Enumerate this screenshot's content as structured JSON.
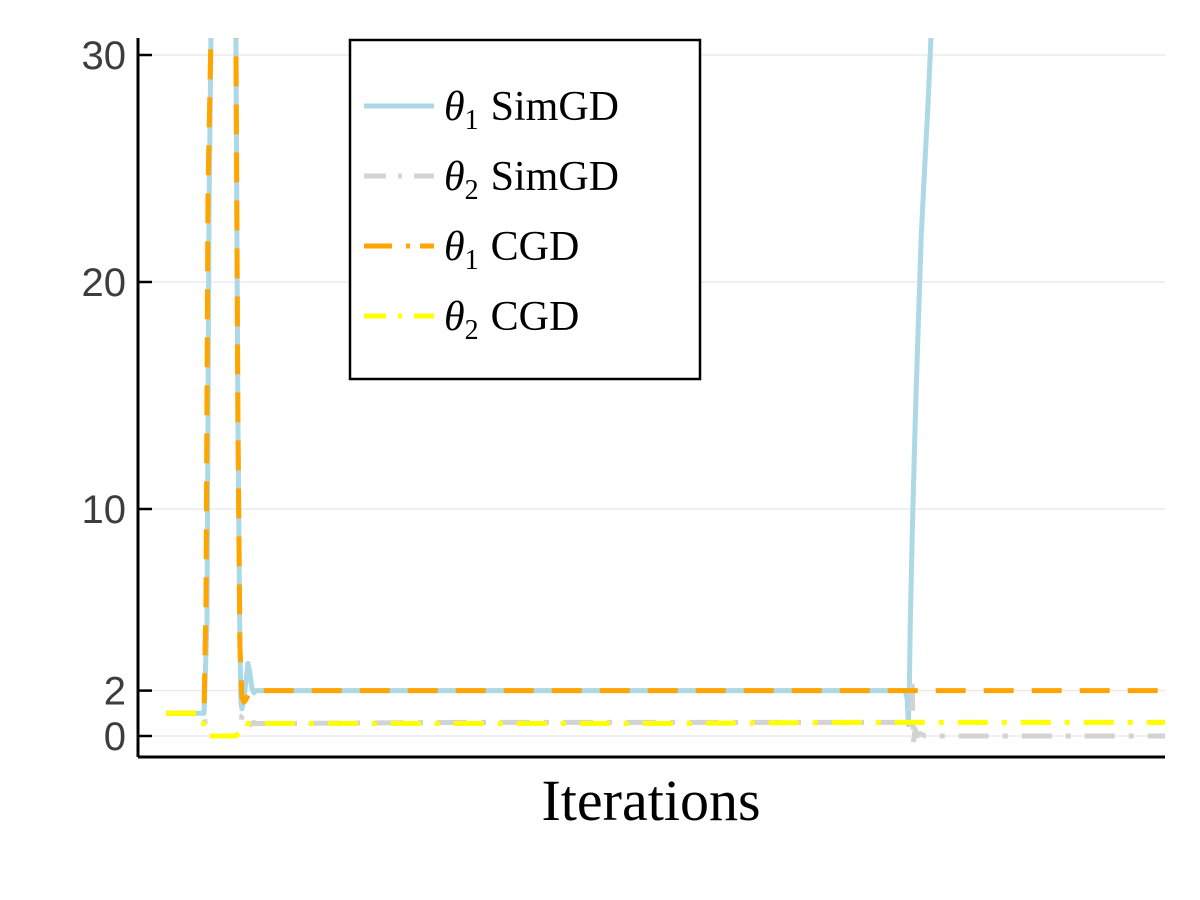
{
  "chart_data": {
    "type": "line",
    "xlabel": "Iterations",
    "ylabel": "",
    "title": "",
    "xlim": [
      0,
      1000
    ],
    "ylim": [
      -1,
      31
    ],
    "yticks": [
      0,
      2,
      10,
      20,
      30
    ],
    "grid": true,
    "legend_position": "top-center",
    "series": [
      {
        "name": "θ1 SimGD",
        "symbol": "θ",
        "subscript": "1",
        "method": "SimGD",
        "color": "#add8e6",
        "style": "solid",
        "x": [
          0,
          30,
          38,
          41,
          43,
          45,
          70,
          72,
          74,
          75,
          76,
          77,
          78,
          80,
          82,
          84,
          86,
          88,
          90,
          92,
          95,
          100,
          300,
          500,
          700,
          740,
          742,
          743,
          744,
          745,
          747,
          750,
          753,
          756,
          760,
          763,
          765,
          766
        ],
        "values": [
          1.0,
          1.0,
          1.0,
          5,
          23,
          31,
          31,
          14,
          4,
          1.5,
          1.2,
          1.4,
          1.6,
          2.4,
          3.2,
          2.8,
          2.1,
          1.9,
          2.0,
          2.0,
          2.0,
          2.0,
          2.0,
          2.0,
          2.0,
          2.0,
          1.6,
          0.5,
          2.0,
          5,
          9,
          14,
          18,
          22,
          25.5,
          28,
          30,
          31
        ]
      },
      {
        "name": "θ2 SimGD",
        "symbol": "θ",
        "subscript": "2",
        "method": "SimGD",
        "color": "#d3d3d3",
        "style": "dashdot",
        "x": [
          0,
          30,
          38,
          40,
          42,
          45,
          70,
          74,
          76,
          78,
          80,
          82,
          85,
          88,
          90,
          100,
          300,
          500,
          700,
          745,
          747,
          748,
          750,
          752,
          755,
          760,
          800,
          900,
          1000
        ],
        "values": [
          1.0,
          1.0,
          1.0,
          0.2,
          0.0,
          0.0,
          0.0,
          0.2,
          0.9,
          1.0,
          0.8,
          0.6,
          0.5,
          0.6,
          0.55,
          0.55,
          0.6,
          0.6,
          0.6,
          0.6,
          2.2,
          -0.3,
          0.3,
          0.0,
          0.1,
          0.0,
          0.0,
          0.0,
          0.0
        ]
      },
      {
        "name": "θ1 CGD",
        "symbol": "θ",
        "subscript": "1",
        "method": "CGD",
        "color": "#ffa500",
        "style": "dash",
        "x": [
          0,
          30,
          38,
          40,
          42,
          45,
          70,
          72,
          74,
          76,
          78,
          80,
          82,
          86,
          90,
          100,
          300,
          500,
          700,
          900,
          1000
        ],
        "values": [
          1.0,
          1.0,
          1.0,
          6,
          24,
          31,
          31,
          14,
          4,
          1.7,
          1.5,
          1.6,
          1.8,
          2.0,
          2.0,
          2.0,
          2.0,
          2.0,
          2.0,
          2.0,
          2.0
        ]
      },
      {
        "name": "θ2 CGD",
        "symbol": "θ",
        "subscript": "2",
        "method": "CGD",
        "color": "#ffff00",
        "style": "dashdot",
        "x": [
          0,
          36,
          38,
          40,
          42,
          45,
          70,
          75,
          78,
          80,
          85,
          90,
          100,
          300,
          500,
          700,
          900,
          1000
        ],
        "values": [
          1.0,
          1.0,
          0.4,
          0.0,
          0.0,
          0.0,
          0.0,
          0.3,
          0.6,
          0.55,
          0.55,
          0.55,
          0.55,
          0.55,
          0.55,
          0.6,
          0.6,
          0.6
        ]
      }
    ]
  }
}
